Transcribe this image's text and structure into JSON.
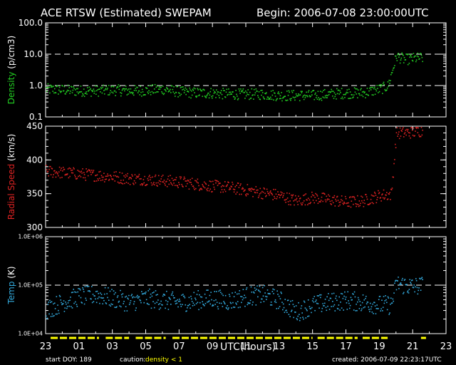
{
  "header": {
    "title": "ACE RTSW (Estimated) SWEPAM",
    "begin": "Begin: 2006-07-08 23:00:00UTC"
  },
  "footer": {
    "start_doy": "start DOY: 189",
    "caution_label": "caution:",
    "caution_text": "density < 1",
    "created": "created: 2006-07-09 22:23:17UTC"
  },
  "colors": {
    "background": "#000000",
    "axes": "#ffffff",
    "density": "#22cc22",
    "speed": "#dd2222",
    "temp": "#33aadd",
    "caution": "#ffff00"
  },
  "chart_data": [
    {
      "type": "scatter",
      "ylabel": "Density (p/cm3)",
      "yscale": "log",
      "ylim": [
        0.1,
        100
      ],
      "yticks": [
        "0.1",
        "1.0",
        "10.0",
        "100.0"
      ],
      "reference_lines": [
        1,
        10
      ],
      "series": [
        {
          "x": [
            0,
            1,
            2,
            3,
            4,
            5,
            6,
            7,
            8,
            9,
            10,
            11,
            12,
            13,
            14,
            15,
            16,
            17,
            18,
            19,
            20,
            20.5,
            21,
            21.5,
            22,
            22.5
          ],
          "values": [
            0.8,
            0.75,
            0.7,
            0.7,
            0.75,
            0.7,
            0.72,
            0.8,
            0.65,
            0.6,
            0.6,
            0.55,
            0.55,
            0.55,
            0.5,
            0.5,
            0.5,
            0.55,
            0.6,
            0.6,
            0.8,
            1.0,
            9,
            7,
            7.5,
            8
          ]
        }
      ]
    },
    {
      "type": "scatter",
      "ylabel": "Radial Speed (km/s)",
      "ylim": [
        300,
        450
      ],
      "yticks": [
        "300",
        "350",
        "400",
        "450"
      ],
      "series": [
        {
          "x": [
            0,
            1,
            2,
            3,
            4,
            5,
            6,
            7,
            8,
            9,
            10,
            11,
            12,
            13,
            14,
            15,
            16,
            17,
            18,
            19,
            20,
            20.7,
            21,
            22,
            22.5
          ],
          "values": [
            384,
            382,
            380,
            378,
            376,
            373,
            372,
            370,
            368,
            365,
            362,
            360,
            356,
            352,
            348,
            340,
            345,
            342,
            338,
            340,
            348,
            350,
            440,
            442,
            444
          ]
        }
      ]
    },
    {
      "type": "scatter",
      "ylabel": "Temp (K)",
      "yscale": "log",
      "ylim": [
        10000,
        1000000
      ],
      "yticks": [
        "1.0E+04",
        "1.0E+05",
        "1.0E+06"
      ],
      "reference_lines": [
        100000
      ],
      "xlabel": "UTC(hours)",
      "xticks": [
        "23",
        "01",
        "03",
        "05",
        "07",
        "09",
        "11",
        "13",
        "15",
        "17",
        "19",
        "21",
        "23"
      ],
      "series": [
        {
          "x": [
            0,
            1,
            2,
            3,
            4,
            5,
            6,
            7,
            8,
            9,
            10,
            11,
            12,
            13,
            14,
            15,
            16,
            17,
            18,
            19,
            20,
            20.7,
            21,
            22,
            22.5
          ],
          "values": [
            32000,
            45000,
            60000,
            65000,
            55000,
            45000,
            55000,
            50000,
            45000,
            50000,
            55000,
            48000,
            60000,
            65000,
            50000,
            28000,
            40000,
            45000,
            50000,
            45000,
            40000,
            40000,
            110000,
            95000,
            100000
          ]
        }
      ]
    }
  ]
}
